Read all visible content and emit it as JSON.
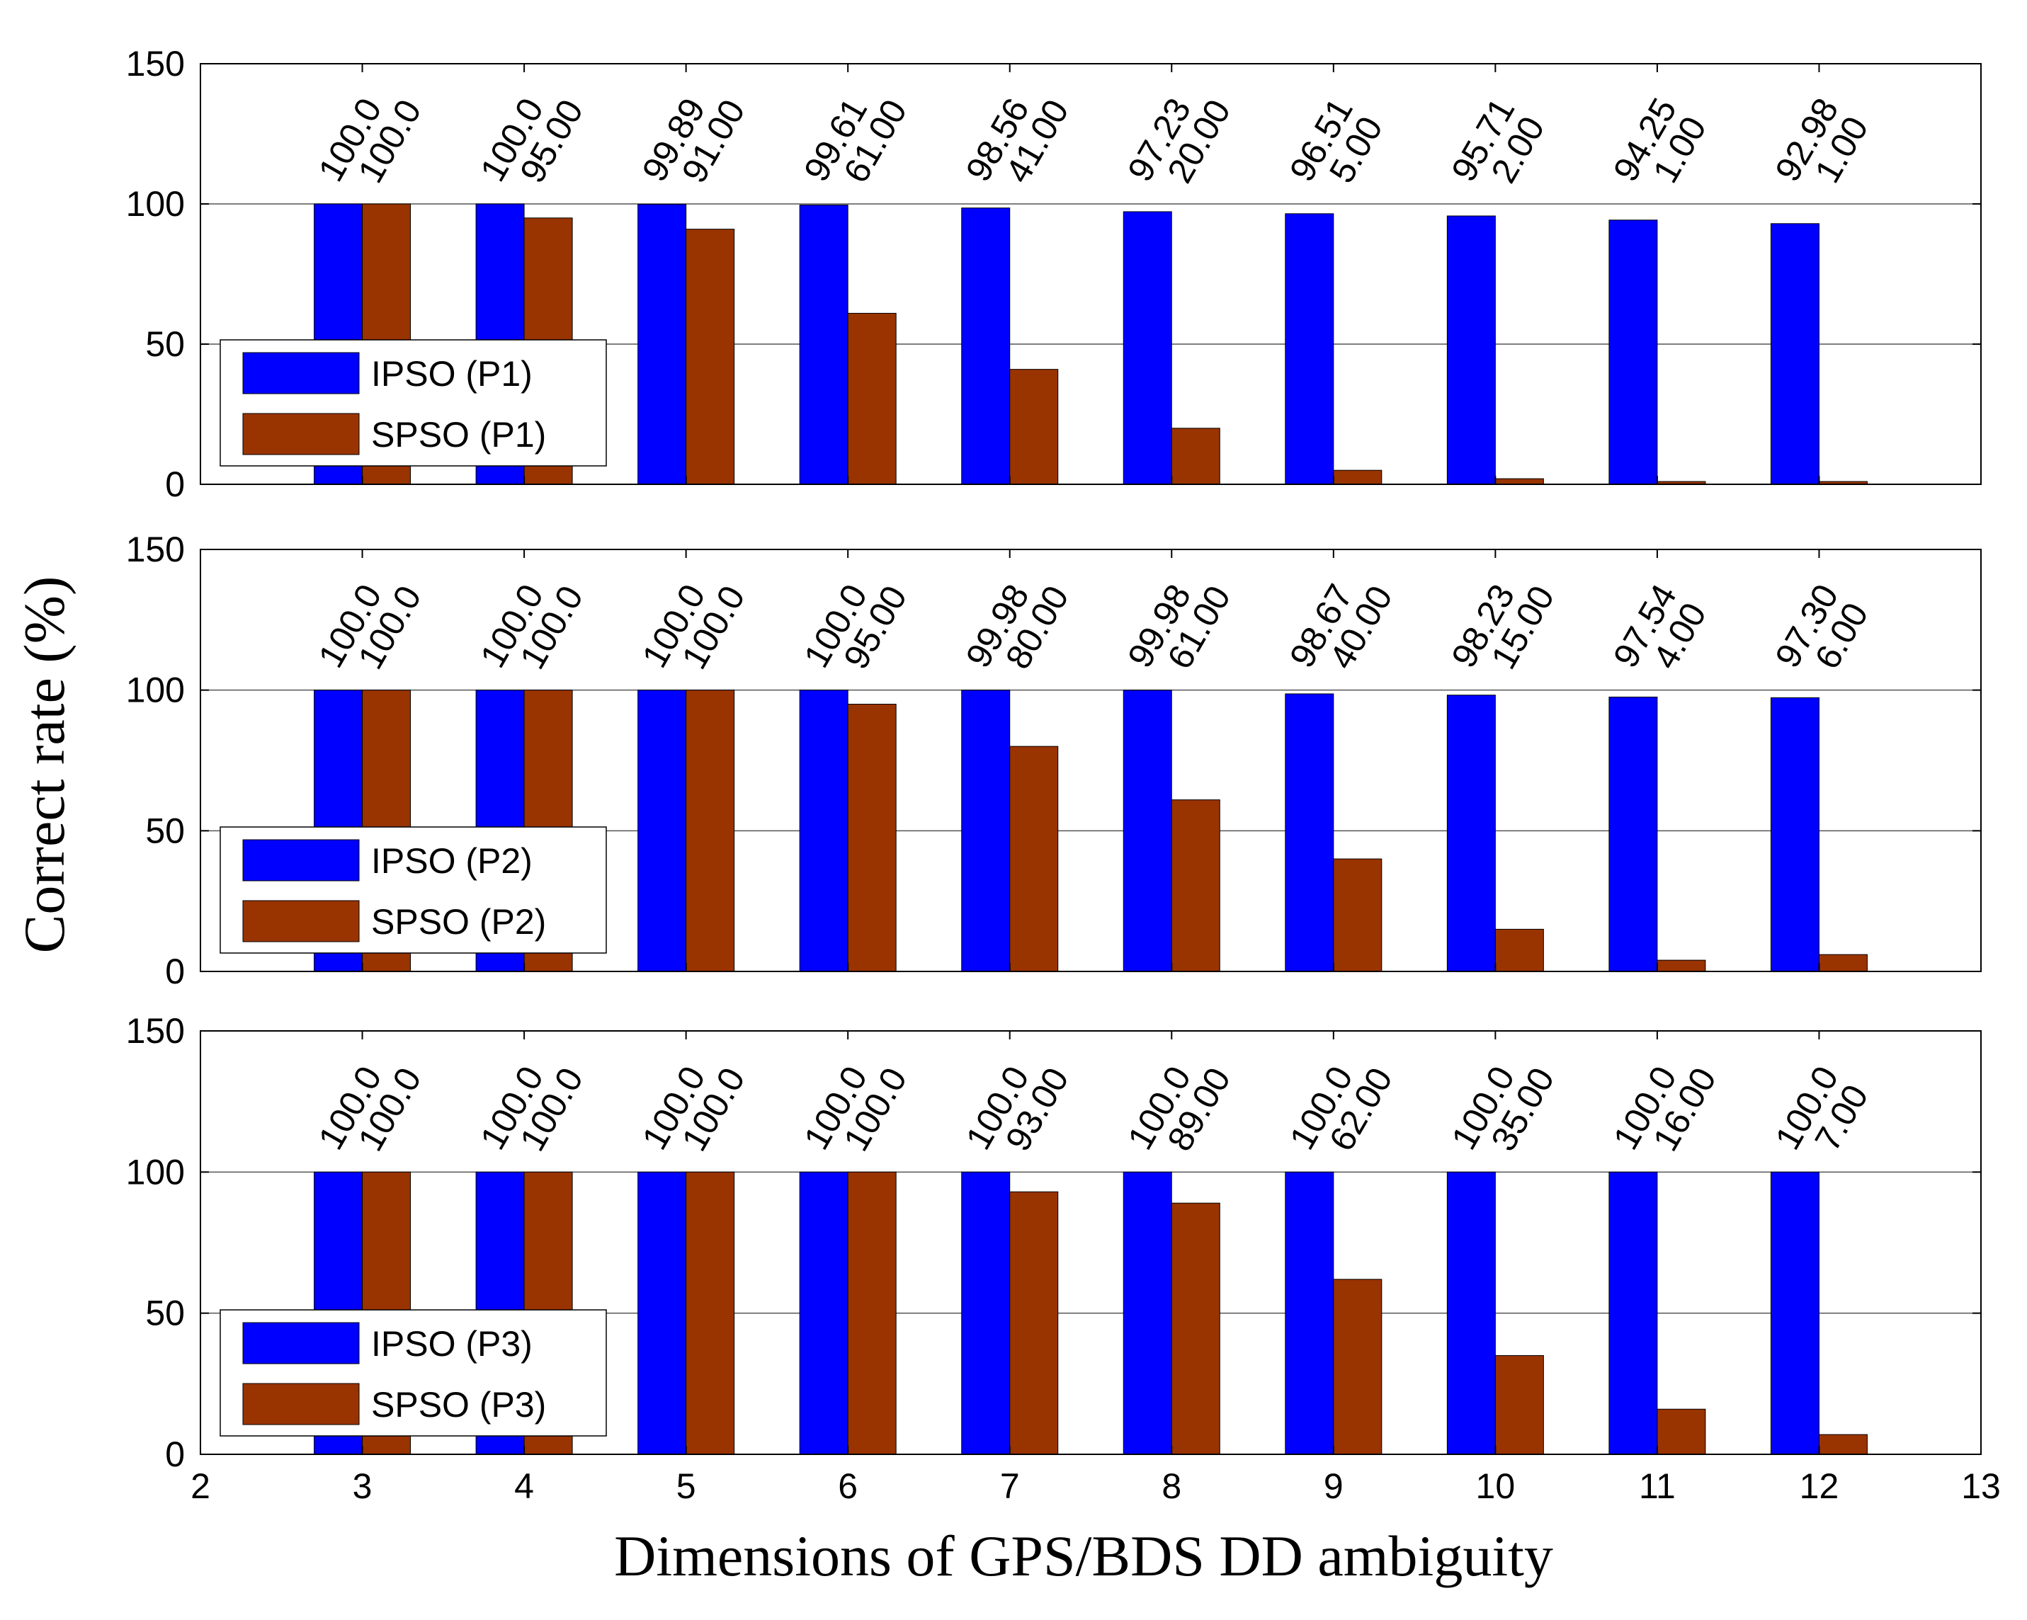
{
  "chart_data": [
    {
      "type": "bar",
      "categories": [
        "3",
        "4",
        "5",
        "6",
        "7",
        "8",
        "9",
        "10",
        "11",
        "12"
      ],
      "series": [
        {
          "name": "IPSO (P1)",
          "color": "#0000FF",
          "values": [
            100.0,
            100.0,
            99.89,
            99.61,
            98.56,
            97.23,
            96.51,
            95.71,
            94.25,
            92.98
          ],
          "labels": [
            "100.0",
            "100.0",
            "99.89",
            "99.61",
            "98.56",
            "97.23",
            "96.51",
            "95.71",
            "94.25",
            "92.98"
          ]
        },
        {
          "name": "SPSO (P1)",
          "color": "#993300",
          "values": [
            100.0,
            95.0,
            91.0,
            61.0,
            41.0,
            20.0,
            5.0,
            2.0,
            1.0,
            1.0
          ],
          "labels": [
            "100.0",
            "95.00",
            "91.00",
            "61.00",
            "41.00",
            "20.00",
            "5.00",
            "2.00",
            "1.00",
            "1.00"
          ]
        }
      ],
      "xlim": [
        2,
        13
      ],
      "ylim": [
        0,
        150
      ],
      "yticks": [
        "0",
        "50",
        "100",
        "150"
      ],
      "grid": true,
      "legend_position": "bottom-left"
    },
    {
      "type": "bar",
      "categories": [
        "3",
        "4",
        "5",
        "6",
        "7",
        "8",
        "9",
        "10",
        "11",
        "12"
      ],
      "series": [
        {
          "name": "IPSO (P2)",
          "color": "#0000FF",
          "values": [
            100.0,
            100.0,
            100.0,
            100.0,
            99.98,
            99.98,
            98.67,
            98.23,
            97.54,
            97.3
          ],
          "labels": [
            "100.0",
            "100.0",
            "100.0",
            "100.0",
            "99.98",
            "99.98",
            "98.67",
            "98.23",
            "97.54",
            "97.30"
          ]
        },
        {
          "name": "SPSO (P2)",
          "color": "#993300",
          "values": [
            100.0,
            100.0,
            100.0,
            95.0,
            80.0,
            61.0,
            40.0,
            15.0,
            4.0,
            6.0
          ],
          "labels": [
            "100.0",
            "100.0",
            "100.0",
            "95.00",
            "80.00",
            "61.00",
            "40.00",
            "15.00",
            "4.00",
            "6.00"
          ]
        }
      ],
      "xlim": [
        2,
        13
      ],
      "ylim": [
        0,
        150
      ],
      "yticks": [
        "0",
        "50",
        "100",
        "150"
      ],
      "grid": true,
      "legend_position": "bottom-left"
    },
    {
      "type": "bar",
      "categories": [
        "3",
        "4",
        "5",
        "6",
        "7",
        "8",
        "9",
        "10",
        "11",
        "12"
      ],
      "series": [
        {
          "name": "IPSO (P3)",
          "color": "#0000FF",
          "values": [
            100.0,
            100.0,
            100.0,
            100.0,
            100.0,
            100.0,
            100.0,
            100.0,
            100.0,
            100.0
          ],
          "labels": [
            "100.0",
            "100.0",
            "100.0",
            "100.0",
            "100.0",
            "100.0",
            "100.0",
            "100.0",
            "100.0",
            "100.0"
          ]
        },
        {
          "name": "SPSO (P3)",
          "color": "#993300",
          "values": [
            100.0,
            100.0,
            100.0,
            100.0,
            93.0,
            89.0,
            62.0,
            35.0,
            16.0,
            7.0
          ],
          "labels": [
            "100.0",
            "100.0",
            "100.0",
            "100.0",
            "93.00",
            "89.00",
            "62.00",
            "35.00",
            "16.00",
            "7.00"
          ]
        }
      ],
      "xlim": [
        2,
        13
      ],
      "ylim": [
        0,
        150
      ],
      "yticks": [
        "0",
        "50",
        "100",
        "150"
      ],
      "xticks": [
        "2",
        "3",
        "4",
        "5",
        "6",
        "7",
        "8",
        "9",
        "10",
        "11",
        "12",
        "13"
      ],
      "grid": true,
      "legend_position": "bottom-left"
    }
  ],
  "ylabel": "Correct rate (%)",
  "xlabel": "Dimensions of GPS/BDS DD ambiguity"
}
